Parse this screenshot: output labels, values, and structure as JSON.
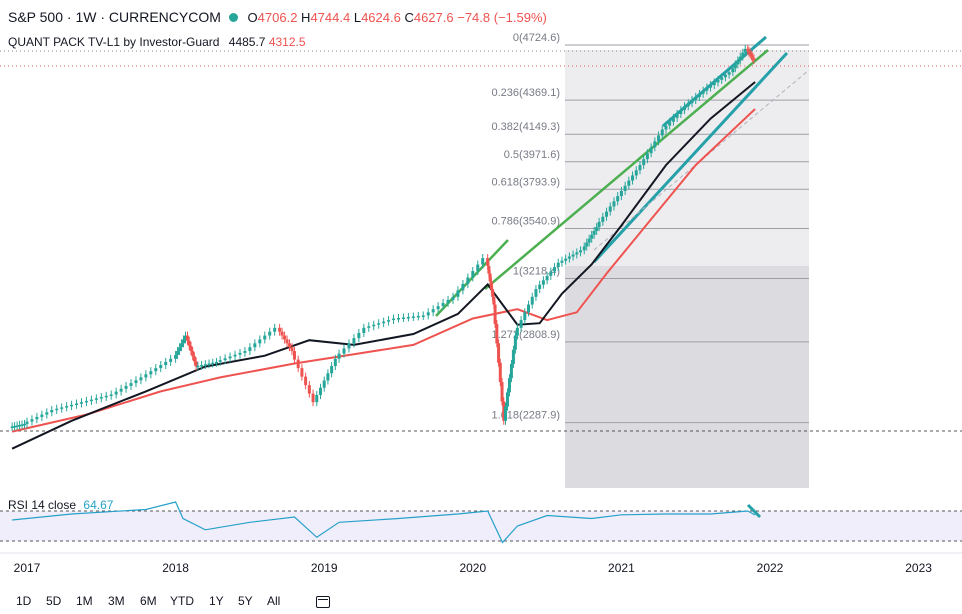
{
  "header": {
    "symbol": "S&P 500 · 1W · CURRENCYCOM",
    "ohlc": [
      {
        "k": "O",
        "v": "4706.2"
      },
      {
        "k": "H",
        "v": "4744.4"
      },
      {
        "k": "L",
        "v": "4624.6"
      },
      {
        "k": "C",
        "v": "4627.6"
      }
    ],
    "change": "−74.8 (−1.59%)",
    "indicator_name": "QUANT PACK TV-L1 by Investor-Guard",
    "indicator_value_1": "4485.7",
    "indicator_value_2": "4312.5"
  },
  "rsi": {
    "label": "RSI 14 close",
    "value": "64.67"
  },
  "timeframes": [
    "1D",
    "5D",
    "1M",
    "3M",
    "6M",
    "YTD",
    "1Y",
    "5Y",
    "All"
  ],
  "colors": {
    "up": "#26a69a",
    "down": "#ef5350",
    "line_black": "#131722",
    "line_red": "#ef5350",
    "trend_green": "#4caf50",
    "channel_teal": "#26a1a9",
    "rsi": "#26a1c9",
    "fib_bg": "#e9e9ed"
  },
  "chart_data": {
    "type": "line",
    "title": "S&P 500 · 1W · CURRENCYCOM",
    "x_tick_labels": [
      "2017",
      "2018",
      "2019",
      "2020",
      "2021",
      "2022",
      "2023"
    ],
    "fib_levels": [
      {
        "label": "0(4724.6)",
        "value": 4724.6
      },
      {
        "label": "0.236(4369.1)",
        "value": 4369.1
      },
      {
        "label": "0.382(4149.3)",
        "value": 4149.3
      },
      {
        "label": "0.5(3971.6)",
        "value": 3971.6
      },
      {
        "label": "0.618(3793.9)",
        "value": 3793.9
      },
      {
        "label": "0.786(3540.9)",
        "value": 3540.9
      },
      {
        "label": "1(3218.4)",
        "value": 3218.4
      },
      {
        "label": "1.272(2808.9)",
        "value": 2808.9
      },
      {
        "label": "1.618(2287.9)",
        "value": 2287.9
      }
    ],
    "series": [
      {
        "name": "S&P 500",
        "x": [
          2016.9,
          2017.0,
          2017.2,
          2017.4,
          2017.6,
          2017.8,
          2018.0,
          2018.08,
          2018.15,
          2018.3,
          2018.5,
          2018.7,
          2018.8,
          2018.95,
          2019.1,
          2019.3,
          2019.5,
          2019.7,
          2019.9,
          2020.1,
          2020.15,
          2020.22,
          2020.3,
          2020.45,
          2020.6,
          2020.75,
          2020.85,
          2021.0,
          2021.15,
          2021.3,
          2021.45,
          2021.6,
          2021.75,
          2021.85,
          2021.9
        ],
        "values": [
          2260,
          2280,
          2370,
          2420,
          2470,
          2580,
          2700,
          2850,
          2650,
          2680,
          2750,
          2900,
          2750,
          2420,
          2700,
          2900,
          2960,
          2980,
          3100,
          3350,
          3050,
          2300,
          2850,
          3150,
          3320,
          3400,
          3550,
          3750,
          3950,
          4180,
          4330,
          4450,
          4550,
          4700,
          4628
        ]
      },
      {
        "name": "QUANT PACK TV-L1 line 1",
        "x": [
          2016.9,
          2017.3,
          2017.8,
          2018.2,
          2018.6,
          2018.9,
          2019.2,
          2019.6,
          2019.9,
          2020.1,
          2020.3,
          2020.45,
          2020.6,
          2020.8,
          2021.0,
          2021.3,
          2021.6,
          2021.9
        ],
        "values": [
          2120,
          2300,
          2490,
          2650,
          2720,
          2820,
          2790,
          2860,
          2990,
          3180,
          2920,
          2930,
          3120,
          3310,
          3560,
          3950,
          4250,
          4486
        ]
      },
      {
        "name": "QUANT PACK TV-L1 line 2",
        "x": [
          2016.9,
          2017.4,
          2017.9,
          2018.3,
          2018.8,
          2019.2,
          2019.6,
          2020.0,
          2020.3,
          2020.5,
          2020.7,
          2020.9,
          2021.2,
          2021.5,
          2021.9
        ],
        "values": [
          2230,
          2340,
          2490,
          2580,
          2670,
          2730,
          2790,
          2960,
          3020,
          2950,
          3000,
          3250,
          3600,
          3950,
          4312
        ]
      }
    ],
    "rsi_series": {
      "x": [
        2016.9,
        2017.3,
        2017.8,
        2018.0,
        2018.05,
        2018.2,
        2018.5,
        2018.8,
        2018.95,
        2019.1,
        2019.5,
        2019.9,
        2020.1,
        2020.2,
        2020.3,
        2020.5,
        2020.8,
        2021.0,
        2021.3,
        2021.6,
        2021.85,
        2021.9
      ],
      "values": [
        58,
        66,
        72,
        82,
        60,
        45,
        55,
        62,
        35,
        55,
        60,
        66,
        70,
        28,
        50,
        64,
        60,
        65,
        66,
        66,
        70,
        64.67
      ]
    }
  }
}
